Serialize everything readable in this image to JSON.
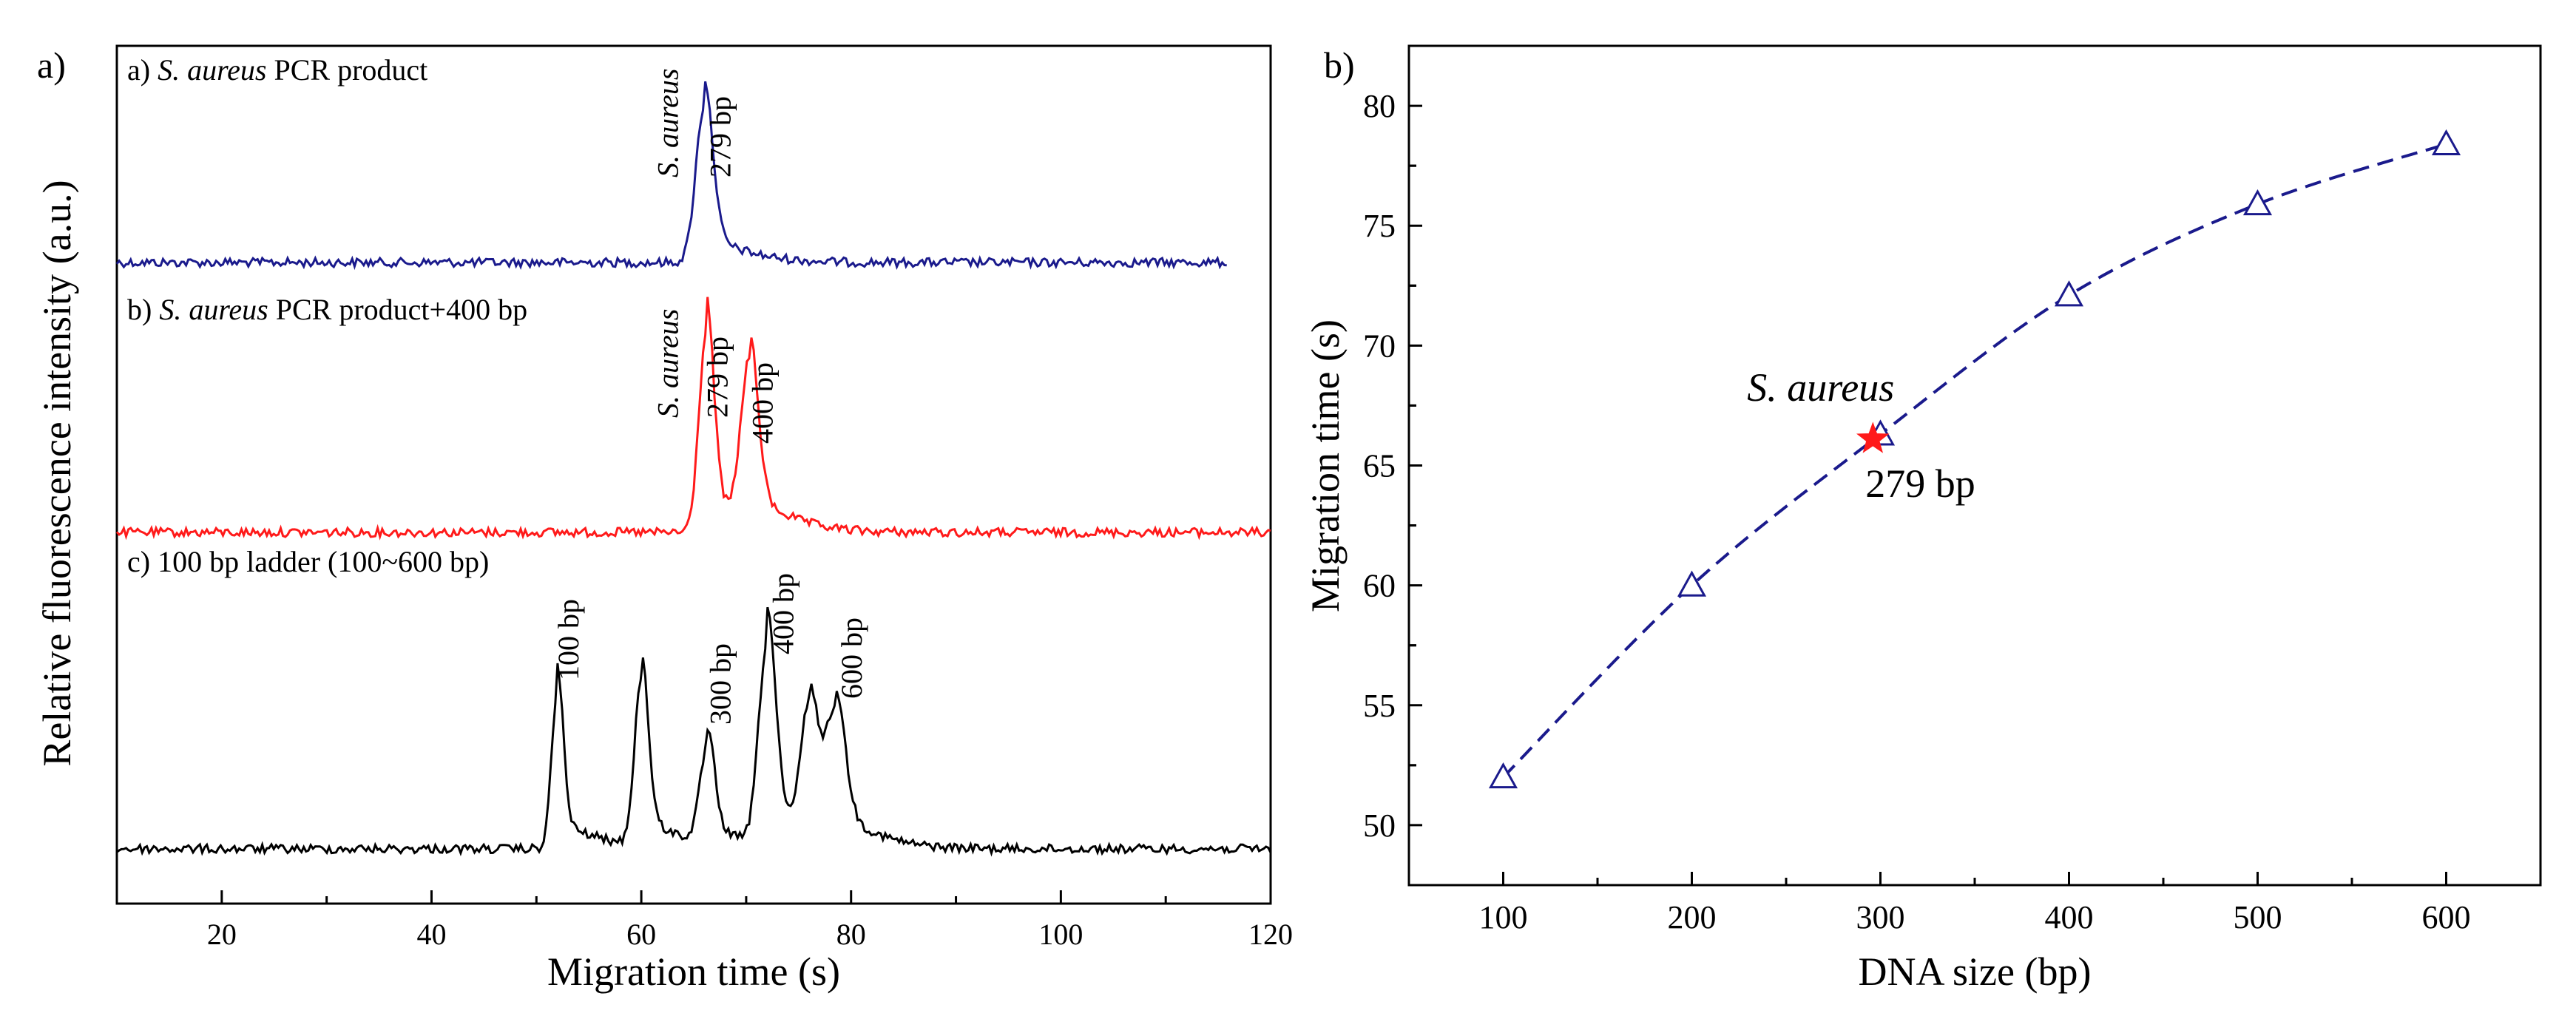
{
  "chart_data": [
    {
      "type": "line",
      "panel_label": "a)",
      "xlabel": "Migration time (s)",
      "ylabel": "Relative fluorescence intensity (a.u.)",
      "xlim": [
        10,
        120
      ],
      "x_ticks": [
        "20",
        "40",
        "60",
        "80",
        "100",
        "120"
      ],
      "x_tick_values": [
        20,
        40,
        60,
        80,
        100,
        120
      ],
      "grid": false,
      "series": [
        {
          "title_prefix": "a)",
          "title_italic": "S. aureus",
          "title_rest": "PCR product",
          "color": "#1a1a8c",
          "x_range": [
            10,
            116
          ],
          "peaks": [
            {
              "x": 66.0,
              "height": 0.9,
              "width": 0.8
            }
          ],
          "labels": [
            {
              "x": 63.5,
              "text": "S. aureus",
              "italic": true
            },
            {
              "x": 68.5,
              "text": "279 bp",
              "italic": false
            }
          ]
        },
        {
          "title_prefix": "b)",
          "title_italic": "S. aureus",
          "title_rest": "PCR product+400 bp",
          "color": "#ff1a1a",
          "x_range": [
            10,
            120
          ],
          "peaks": [
            {
              "x": 66.2,
              "height": 1.0,
              "width": 0.7
            },
            {
              "x": 70.3,
              "height": 0.8,
              "width": 0.8
            }
          ],
          "labels": [
            {
              "x": 63.5,
              "text": "S. aureus",
              "italic": true
            },
            {
              "x": 68.2,
              "text": "279 bp",
              "italic": false
            },
            {
              "x": 72.5,
              "text": "400 bp",
              "italic": false
            }
          ]
        },
        {
          "title_prefix": "c)",
          "title_italic": "",
          "title_rest": "100 bp ladder (100~600 bp)",
          "color": "#000000",
          "x_range": [
            10,
            120
          ],
          "peaks": [
            {
              "x": 52.0,
              "height": 0.62,
              "width": 0.55
            },
            {
              "x": 60.0,
              "height": 0.66,
              "width": 0.65
            },
            {
              "x": 66.3,
              "height": 0.38,
              "width": 0.7
            },
            {
              "x": 72.0,
              "height": 0.8,
              "width": 0.8
            },
            {
              "x": 76.0,
              "height": 0.52,
              "width": 0.8
            },
            {
              "x": 78.5,
              "height": 0.48,
              "width": 0.9
            }
          ],
          "labels": [
            {
              "x": 54.0,
              "text": "100 bp",
              "italic": false
            },
            {
              "x": 68.5,
              "text": "300 bp",
              "italic": false
            },
            {
              "x": 74.5,
              "text": "400 bp",
              "italic": false
            },
            {
              "x": 81.0,
              "text": "600 bp",
              "italic": false
            }
          ]
        }
      ]
    },
    {
      "type": "scatter",
      "panel_label": "b)",
      "xlabel": "DNA size (bp)",
      "ylabel": "Migration time (s)",
      "xlim": [
        50,
        650
      ],
      "ylim": [
        47.5,
        82.5
      ],
      "x_ticks": [
        100,
        200,
        300,
        400,
        500,
        600
      ],
      "y_ticks": [
        50,
        55,
        60,
        65,
        70,
        75,
        80
      ],
      "grid": false,
      "series": [
        {
          "marker": "open-triangle",
          "color": "#1a1a8c",
          "x": [
            100,
            200,
            300,
            400,
            500,
            600
          ],
          "y": [
            52.0,
            60.0,
            66.3,
            72.1,
            75.9,
            78.4
          ]
        },
        {
          "marker": "star",
          "color": "#ff1a1a",
          "x": [
            296
          ],
          "y": [
            66.1
          ]
        }
      ],
      "fit_line": {
        "style": "dashed",
        "color": "#1a1a8c"
      },
      "annotations": [
        {
          "text": "S. aureus",
          "italic": true
        },
        {
          "text": "279 bp",
          "italic": false
        }
      ]
    }
  ]
}
